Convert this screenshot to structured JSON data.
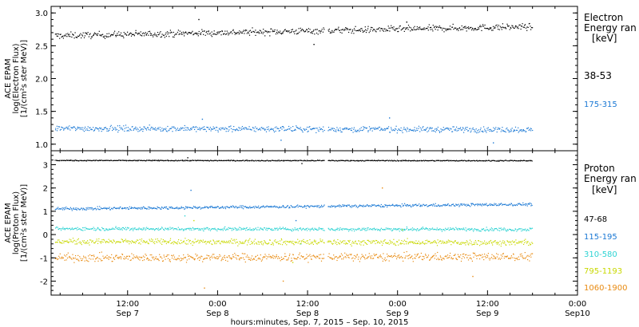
{
  "chart_data": [
    {
      "type": "scatter",
      "ylabel": [
        "ACE EPAM",
        "log(Electron Flux)",
        "[1/(cm²s ster MeV)]"
      ],
      "ylim": [
        0.9,
        3.1
      ],
      "yticks": [
        "1.0",
        "1.5",
        "2.0",
        "2.5",
        "3.0"
      ],
      "legend_title": [
        "Electron",
        "Energy ran",
        "[keV]"
      ],
      "series": [
        {
          "name": "38-53",
          "color": "#000000",
          "mean": 2.71,
          "start": 2.65,
          "end": 2.79,
          "spread": 0.08,
          "outliers": [
            2.9,
            2.52,
            2.86
          ]
        },
        {
          "name": "175-315",
          "color": "#1a78d4",
          "mean": 1.24,
          "start": 1.24,
          "end": 1.22,
          "spread": 0.07,
          "outliers": [
            1.38,
            1.06,
            1.4,
            1.02
          ]
        }
      ]
    },
    {
      "type": "scatter",
      "ylabel": [
        "ACE EPAM",
        "log(Proton Flux)",
        "[1/(cm²s ster MeV)]"
      ],
      "ylim": [
        -2.6,
        3.6
      ],
      "yticks": [
        "-2",
        "-1",
        "0",
        "1",
        "2",
        "3"
      ],
      "legend_title": [
        "Proton",
        "Energy ran",
        "[keV]"
      ],
      "series": [
        {
          "name": "47-68",
          "color": "#000000",
          "mean": 3.18,
          "start": 3.18,
          "end": 3.17,
          "spread": 0.03,
          "outliers": [
            3.3,
            3.05
          ]
        },
        {
          "name": "115-195",
          "color": "#1a78d4",
          "mean": 1.3,
          "start": 1.1,
          "end": 1.3,
          "spread": 0.1,
          "outliers": [
            1.9,
            0.6
          ]
        },
        {
          "name": "310-580",
          "color": "#2ed3d3",
          "mean": 0.22,
          "start": 0.25,
          "end": 0.22,
          "spread": 0.12,
          "outliers": [
            0.8,
            -0.4
          ]
        },
        {
          "name": "795-1193",
          "color": "#c8d800",
          "mean": -0.35,
          "start": -0.3,
          "end": -0.35,
          "spread": 0.2,
          "outliers": [
            0.6,
            -1.2,
            0.2
          ]
        },
        {
          "name": "1060-1900",
          "color": "#e88a10",
          "mean": -1.0,
          "start": -1.0,
          "end": -0.95,
          "spread": 0.28,
          "outliers": [
            -2.3,
            -2.0,
            2.0,
            -1.8
          ]
        }
      ]
    }
  ],
  "time_axis": {
    "xlabel": "hours:minutes, Sep.  7, 2015 – Sep. 10, 2015",
    "ticks": [
      {
        "hour": 12,
        "time": "12:00",
        "day": "Sep 7"
      },
      {
        "hour": 24,
        "time": "0:00",
        "day": "Sep 8"
      },
      {
        "hour": 36,
        "time": "12:00",
        "day": "Sep 8"
      },
      {
        "hour": 48,
        "time": "0:00",
        "day": "Sep 9"
      },
      {
        "hour": 60,
        "time": "12:00",
        "day": "Sep 9"
      },
      {
        "hour": 72,
        "time": "0:00",
        "day": "Sep10"
      }
    ],
    "xlim_hours": [
      1.8,
      72
    ],
    "data_end_hour": 65.9,
    "gap_hours": [
      38.2,
      38.6
    ]
  }
}
